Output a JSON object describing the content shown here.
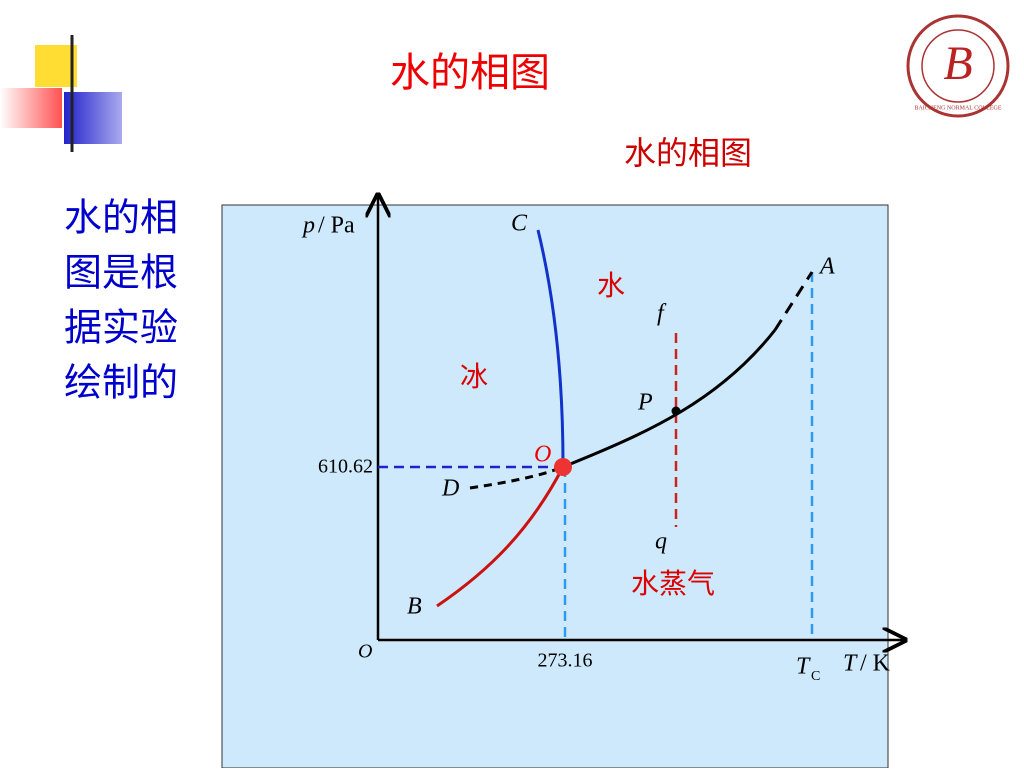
{
  "slide": {
    "title": "水的相图",
    "subtitle": "水的相图",
    "side_text": [
      "水的相",
      "图是根",
      "据实验",
      "绘制的"
    ],
    "logo": {
      "letter": "B",
      "caption": "BAICHENG NORMAL COLLEGE"
    }
  },
  "diagram": {
    "y_axis": {
      "symbol": "p",
      "unit": "/ Pa"
    },
    "x_axis": {
      "symbol": "T",
      "unit": "/ K"
    },
    "origin": "O",
    "pressure_label": "610.62",
    "temperature_label": "273.16",
    "critical": {
      "symbol": "T",
      "subscript": "C"
    },
    "points": {
      "C": "C",
      "A": "A",
      "f": "f",
      "P": "P",
      "O": "O",
      "D": "D",
      "q": "q",
      "B": "B"
    },
    "regions": {
      "water": "水",
      "ice": "冰",
      "vapor": "水蒸气"
    }
  }
}
